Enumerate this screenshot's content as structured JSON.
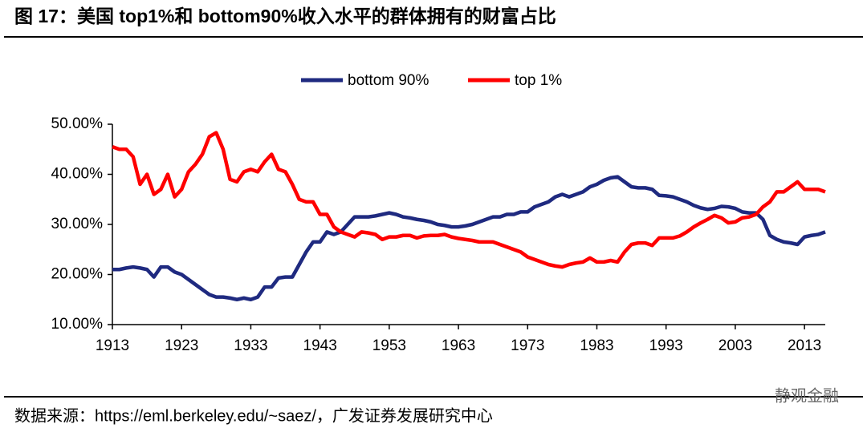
{
  "chart_data": {
    "type": "line",
    "title": "图 17：美国 top1%和 bottom90%收入水平的群体拥有的财富占比",
    "source": "数据来源：https://eml.berkeley.edu/~saez/，广发证券发展研究中心",
    "watermark": "静观金融",
    "x": [
      1913,
      1914,
      1915,
      1916,
      1917,
      1918,
      1919,
      1920,
      1921,
      1922,
      1923,
      1924,
      1925,
      1926,
      1927,
      1928,
      1929,
      1930,
      1931,
      1932,
      1933,
      1934,
      1935,
      1936,
      1937,
      1938,
      1939,
      1940,
      1941,
      1942,
      1943,
      1944,
      1945,
      1946,
      1947,
      1948,
      1949,
      1950,
      1951,
      1952,
      1953,
      1954,
      1955,
      1956,
      1957,
      1958,
      1959,
      1960,
      1961,
      1962,
      1963,
      1964,
      1965,
      1966,
      1967,
      1968,
      1969,
      1970,
      1971,
      1972,
      1973,
      1974,
      1975,
      1976,
      1977,
      1978,
      1979,
      1980,
      1981,
      1982,
      1983,
      1984,
      1985,
      1986,
      1987,
      1988,
      1989,
      1990,
      1991,
      1992,
      1993,
      1994,
      1995,
      1996,
      1997,
      1998,
      1999,
      2000,
      2001,
      2002,
      2003,
      2004,
      2005,
      2006,
      2007,
      2008,
      2009,
      2010,
      2011,
      2012,
      2013,
      2014,
      2015,
      2016
    ],
    "series": [
      {
        "name": "bottom 90%",
        "color": "#1f2a80",
        "values": [
          21,
          21,
          21.3,
          21.5,
          21.3,
          21,
          19.5,
          21.5,
          21.5,
          20.5,
          20,
          19,
          18,
          17,
          16,
          15.5,
          15.5,
          15.3,
          15,
          15.3,
          15,
          15.5,
          17.5,
          17.5,
          19.3,
          19.5,
          19.5,
          22,
          24.5,
          26.5,
          26.5,
          28.5,
          28,
          28.5,
          30,
          31.5,
          31.5,
          31.5,
          31.7,
          32,
          32.3,
          32,
          31.5,
          31.3,
          31,
          30.8,
          30.5,
          30,
          29.8,
          29.5,
          29.5,
          29.7,
          30,
          30.5,
          31,
          31.5,
          31.5,
          32,
          32,
          32.5,
          32.5,
          33.5,
          34,
          34.5,
          35.5,
          36,
          35.5,
          36,
          36.5,
          37.5,
          38,
          38.8,
          39.3,
          39.5,
          38.5,
          37.5,
          37.3,
          37.3,
          37,
          35.8,
          35.7,
          35.5,
          35,
          34.5,
          33.8,
          33.3,
          33,
          33.2,
          33.6,
          33.5,
          33.2,
          32.5,
          32.3,
          32.3,
          31,
          27.8,
          27,
          26.5,
          26.3,
          26,
          27.5,
          27.8,
          28,
          28.5
        ]
      },
      {
        "name": "top 1%",
        "color": "#ff0000",
        "values": [
          45.5,
          45,
          45,
          43.5,
          38,
          40,
          36,
          37,
          40,
          35.5,
          37,
          40.5,
          42,
          44,
          47.5,
          48.3,
          45,
          39,
          38.5,
          40.5,
          41,
          40.5,
          42.5,
          44,
          41,
          40.5,
          38,
          35,
          34.5,
          34.5,
          32,
          32,
          29.5,
          28.5,
          28,
          27.5,
          28.5,
          28.3,
          28,
          27,
          27.5,
          27.5,
          27.8,
          27.8,
          27.3,
          27.7,
          27.8,
          27.8,
          28,
          27.5,
          27.2,
          27,
          26.8,
          26.5,
          26.5,
          26.5,
          26,
          25.5,
          25,
          24.5,
          23.5,
          23,
          22.5,
          22,
          21.7,
          21.5,
          22,
          22.3,
          22.5,
          23.3,
          22.5,
          22.5,
          22.8,
          22.5,
          24.5,
          26,
          26.3,
          26.3,
          25.8,
          27.3,
          27.3,
          27.3,
          27.7,
          28.5,
          29.5,
          30.3,
          31,
          31.8,
          31.3,
          30.3,
          30.5,
          31.3,
          31.5,
          32,
          33.5,
          34.5,
          36.5,
          36.5,
          37.5,
          38.5,
          37,
          37,
          37,
          36.5
        ]
      }
    ],
    "xlim": [
      1913,
      2016
    ],
    "xticks": [
      1913,
      1923,
      1933,
      1943,
      1953,
      1963,
      1973,
      1983,
      1993,
      2003,
      2013
    ],
    "ylim": [
      10,
      50
    ],
    "yticks": [
      {
        "value": 10,
        "label": "10.00%"
      },
      {
        "value": 20,
        "label": "20.00%"
      },
      {
        "value": 30,
        "label": "30.00%"
      },
      {
        "value": 40,
        "label": "40.00%"
      },
      {
        "value": 50,
        "label": "50.00%"
      }
    ],
    "legend": "top"
  }
}
